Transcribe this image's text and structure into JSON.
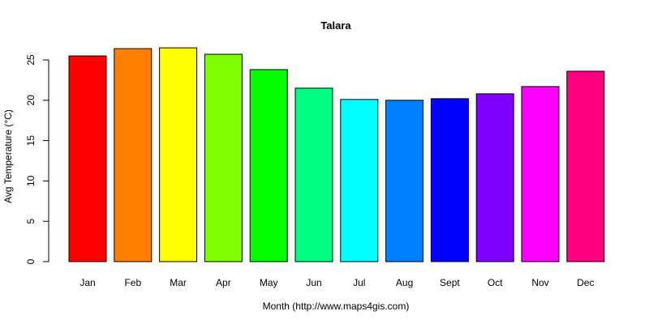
{
  "chart_data": {
    "type": "bar",
    "title": "Talara",
    "xlabel": "Month (http://www.maps4gis.com)",
    "ylabel": "Avg Temperature (°C)",
    "ylim": [
      0,
      25
    ],
    "yticks": [
      0,
      5,
      10,
      15,
      20,
      25
    ],
    "grid": false,
    "legend": null,
    "categories": [
      "Jan",
      "Feb",
      "Mar",
      "Apr",
      "May",
      "Jun",
      "Jul",
      "Aug",
      "Sept",
      "Oct",
      "Nov",
      "Dec"
    ],
    "values": [
      25.5,
      26.4,
      26.5,
      25.7,
      23.8,
      21.5,
      20.1,
      20.0,
      20.2,
      20.8,
      21.7,
      23.6
    ],
    "colors": [
      "#FF0000",
      "#FF8000",
      "#FFFF00",
      "#80FF00",
      "#00FF00",
      "#00FF80",
      "#00FFFF",
      "#0080FF",
      "#0000FF",
      "#8000FF",
      "#FF00FF",
      "#FF0080"
    ]
  }
}
